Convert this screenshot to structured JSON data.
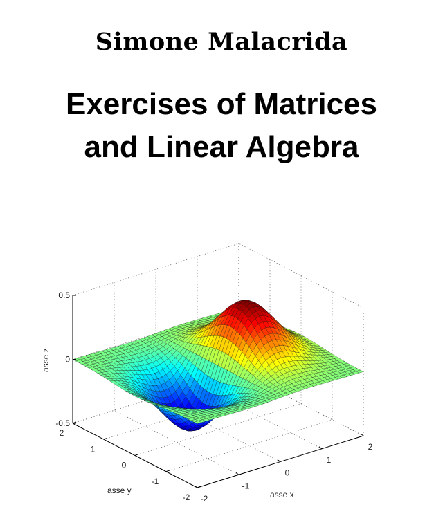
{
  "cover": {
    "author": "Simone Malacrida",
    "title_line1": "Exercises of Matrices",
    "title_line2": "and Linear Algebra"
  },
  "chart_data": {
    "type": "surface",
    "colormap": "jet",
    "xlabel": "asse x",
    "ylabel": "asse y",
    "zlabel": "asse z",
    "xlim": [
      -2,
      2
    ],
    "ylim": [
      -2,
      2
    ],
    "zlim": [
      -0.5,
      0.5
    ],
    "xticks": [
      "-2",
      "-1",
      "0",
      "1",
      "2"
    ],
    "yticks": [
      "-2",
      "-1",
      "0",
      "1",
      "2"
    ],
    "zticks": [
      "-0.5",
      "0",
      "0.5"
    ],
    "grid": true,
    "surface_peak": {
      "x": 0.71,
      "y": 0,
      "z": 0.43
    },
    "surface_trough": {
      "x": -0.71,
      "y": 0,
      "z": -0.43
    }
  }
}
